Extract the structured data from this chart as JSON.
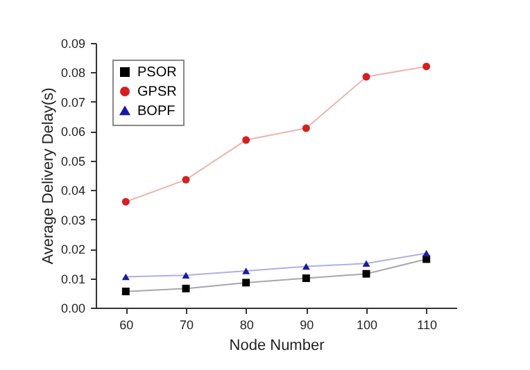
{
  "chart_data": {
    "type": "line",
    "xlabel": "Node Number",
    "ylabel": "Average Delivery Delay(s)",
    "x": [
      60,
      70,
      80,
      90,
      100,
      110
    ],
    "series": [
      {
        "name": "PSOR",
        "color": "#000000",
        "marker": "square",
        "values": [
          0.0055,
          0.0065,
          0.0085,
          0.01,
          0.0115,
          0.0165
        ]
      },
      {
        "name": "GPSR",
        "color": "#d42020",
        "marker": "circle",
        "values": [
          0.036,
          0.0435,
          0.057,
          0.061,
          0.0785,
          0.082
        ]
      },
      {
        "name": "BOPF",
        "color": "#1a1aa8",
        "marker": "triangle",
        "values": [
          0.0105,
          0.011,
          0.0125,
          0.014,
          0.015,
          0.0185
        ]
      }
    ],
    "xlim": [
      55,
      115
    ],
    "xticks": [
      60,
      70,
      80,
      90,
      100,
      110
    ],
    "ylim": [
      0,
      0.09
    ],
    "yticks": [
      {
        "value": 0,
        "label": "0.00"
      },
      0.01,
      0.02,
      0.03,
      0.04,
      0.05,
      0.06,
      0.07,
      0.08,
      0.09
    ],
    "grid": false,
    "legend": "top left"
  }
}
